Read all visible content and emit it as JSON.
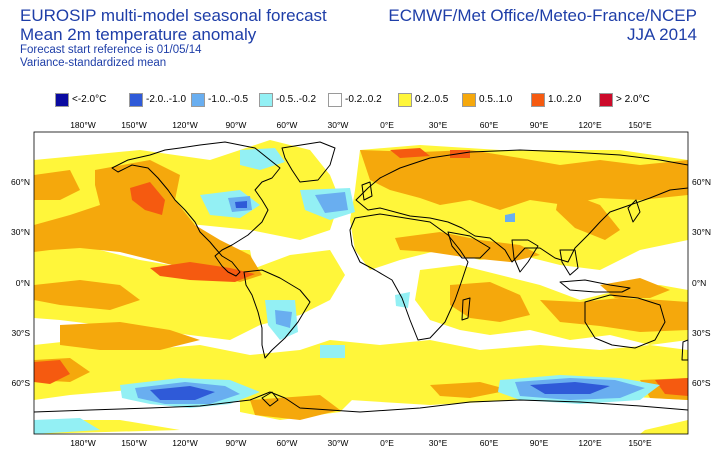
{
  "header": {
    "title_line1": "EUROSIP multi-model seasonal forecast",
    "title_line2": "Mean 2m temperature anomaly",
    "subtitle_line1": "Forecast start reference is 01/05/14",
    "subtitle_line2": "Variance-standardized mean",
    "source": "ECMWF/Met Office/Meteo-France/NCEP",
    "season": "JJA 2014"
  },
  "legend": [
    {
      "label": "<-2.0°C",
      "color": "#0a0aa0"
    },
    {
      "label": "-2.0..-1.0",
      "color": "#2f5ad8"
    },
    {
      "label": "-1.0..-0.5",
      "color": "#69aef0"
    },
    {
      "label": "-0.5..-0.2",
      "color": "#93f0f4"
    },
    {
      "label": "-0.2..0.2",
      "color": "#ffffff"
    },
    {
      "label": "0.2..0.5",
      "color": "#fff63a"
    },
    {
      "label": "0.5..1.0",
      "color": "#f5a80c"
    },
    {
      "label": "1.0..2.0",
      "color": "#f55a10"
    },
    {
      "label": "> 2.0°C",
      "color": "#cc0a2a"
    }
  ],
  "axes": {
    "lon_labels": [
      "180°W",
      "150°W",
      "120°W",
      "90°W",
      "60°W",
      "30°W",
      "0°E",
      "30°E",
      "60°E",
      "90°E",
      "120°E",
      "150°E"
    ],
    "lat_labels": [
      "60°N",
      "30°N",
      "0°N",
      "30°S",
      "60°S"
    ]
  }
}
